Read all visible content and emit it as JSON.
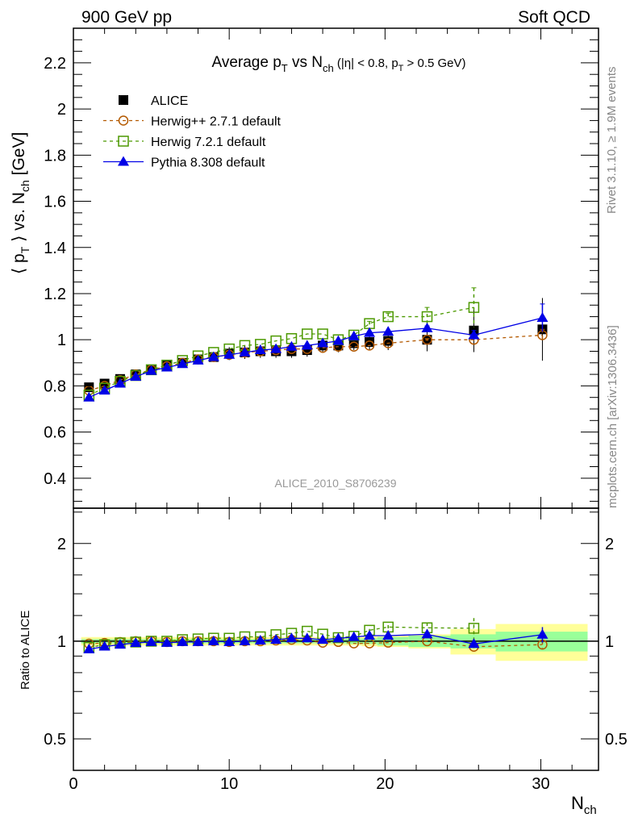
{
  "header": {
    "left": "900 GeV pp",
    "right": "Soft QCD"
  },
  "side": {
    "rivet": "Rivet 3.1.10, ≥ 1.9M events",
    "mcplots": "mcplots.cern.ch [arXiv:1306.3436]"
  },
  "watermark": "ALICE_2010_S8706239",
  "colors": {
    "alice": "#000000",
    "herwigpp": "#b35900",
    "herwig7": "#4c9900",
    "pythia": "#0000e6",
    "band_total": "#ffff99",
    "band_stat": "#99ff99"
  },
  "chart_data": [
    {
      "type": "scatter",
      "title": {
        "main": "Average p",
        "sub1": "T",
        "mid": " vs N",
        "sub2": "ch",
        "cond": " (|η| < 0.8, p",
        "sub3": "T",
        "tail": " > 0.5 GeV)"
      },
      "ylabel": {
        "a": "⟨ p",
        "sub": "T",
        "b": " ⟩ vs. N",
        "sub2": "ch",
        "c": " [GeV]"
      },
      "xlim": [
        0,
        33.7
      ],
      "ylim": [
        0.27,
        2.35
      ],
      "yticks": [
        "0.4",
        "0.6",
        "0.8",
        "1",
        "1.2",
        "1.4",
        "1.6",
        "1.8",
        "2",
        "2.2"
      ],
      "x": [
        1,
        2,
        3,
        4,
        5,
        6,
        7,
        8,
        9,
        10,
        11,
        12,
        13,
        14,
        15,
        16,
        17,
        18,
        19,
        20.2,
        22.7,
        25.7,
        30.1
      ],
      "xlo": [
        0.5,
        1.5,
        2.5,
        3.5,
        4.5,
        5.5,
        6.5,
        7.5,
        8.5,
        9.5,
        10.5,
        11.5,
        12.5,
        13.5,
        14.5,
        15.5,
        16.5,
        17.5,
        18.5,
        19.5,
        21.5,
        24.2,
        27.1
      ],
      "xhi": [
        1.5,
        2.5,
        3.5,
        4.5,
        5.5,
        6.5,
        7.5,
        8.5,
        9.5,
        10.5,
        11.5,
        12.5,
        13.5,
        14.5,
        15.5,
        16.5,
        17.5,
        18.5,
        19.5,
        21.5,
        24.2,
        27.1,
        33.0
      ],
      "series": [
        {
          "name": "ALICE",
          "key": "alice",
          "values": [
            0.794,
            0.81,
            0.83,
            0.85,
            0.87,
            0.89,
            0.9,
            0.915,
            0.925,
            0.94,
            0.945,
            0.95,
            0.95,
            0.95,
            0.955,
            0.975,
            0.975,
            0.985,
            0.99,
            0.995,
            1.0,
            1.04,
            1.045
          ],
          "stat_rel": [
            0.015,
            0.015,
            0.015,
            0.015,
            0.015,
            0.015,
            0.015,
            0.015,
            0.015,
            0.015,
            0.015,
            0.015,
            0.015,
            0.015,
            0.015,
            0.015,
            0.015,
            0.02,
            0.02,
            0.03,
            0.04,
            0.05,
            0.07
          ],
          "tot_rel": [
            0.03,
            0.03,
            0.03,
            0.03,
            0.03,
            0.03,
            0.03,
            0.03,
            0.03,
            0.03,
            0.03,
            0.03,
            0.03,
            0.03,
            0.03,
            0.03,
            0.03,
            0.03,
            0.035,
            0.04,
            0.05,
            0.09,
            0.13
          ]
        },
        {
          "name": "Herwig++ 2.7.1 default",
          "key": "herwigpp",
          "values": [
            0.78,
            0.8,
            0.825,
            0.85,
            0.87,
            0.885,
            0.9,
            0.915,
            0.925,
            0.935,
            0.945,
            0.95,
            0.955,
            0.96,
            0.96,
            0.965,
            0.97,
            0.97,
            0.975,
            0.985,
            1.0,
            1.0,
            1.02
          ],
          "err": [
            0,
            0,
            0,
            0,
            0,
            0,
            0,
            0,
            0,
            0,
            0,
            0,
            0,
            0,
            0,
            0,
            0,
            0,
            0,
            0,
            0.005,
            0.01,
            0.025
          ]
        },
        {
          "name": "Herwig 7.2.1 default",
          "key": "herwig7",
          "values": [
            0.76,
            0.79,
            0.82,
            0.845,
            0.87,
            0.89,
            0.91,
            0.93,
            0.945,
            0.96,
            0.975,
            0.98,
            0.995,
            1.005,
            1.025,
            1.025,
            1.0,
            1.02,
            1.07,
            1.1,
            1.1,
            1.14,
            null
          ],
          "err": [
            0,
            0,
            0,
            0,
            0,
            0,
            0,
            0,
            0,
            0,
            0,
            0,
            0,
            0,
            0,
            0,
            0,
            0,
            0.01,
            0.015,
            0.04,
            0.085,
            0
          ]
        },
        {
          "name": "Pythia 8.308 default",
          "key": "pythia",
          "values": [
            0.75,
            0.78,
            0.81,
            0.84,
            0.865,
            0.88,
            0.895,
            0.91,
            0.925,
            0.935,
            0.945,
            0.955,
            0.96,
            0.97,
            0.975,
            0.985,
            0.995,
            1.015,
            1.03,
            1.035,
            1.05,
            1.02,
            1.095
          ],
          "err": [
            0,
            0,
            0,
            0,
            0,
            0,
            0,
            0,
            0,
            0,
            0,
            0,
            0,
            0,
            0,
            0,
            0,
            0,
            0,
            0,
            0.01,
            0.02,
            0.06
          ]
        }
      ]
    },
    {
      "type": "line",
      "ylabel": "Ratio to ALICE",
      "yscale": "log",
      "ylim": [
        0.4,
        2.57
      ],
      "yticks": [
        "0.5",
        "1",
        "2"
      ],
      "xlabel": {
        "a": "N",
        "sub": "ch"
      },
      "xticks": [
        "0",
        "10",
        "20",
        "30"
      ]
    }
  ]
}
